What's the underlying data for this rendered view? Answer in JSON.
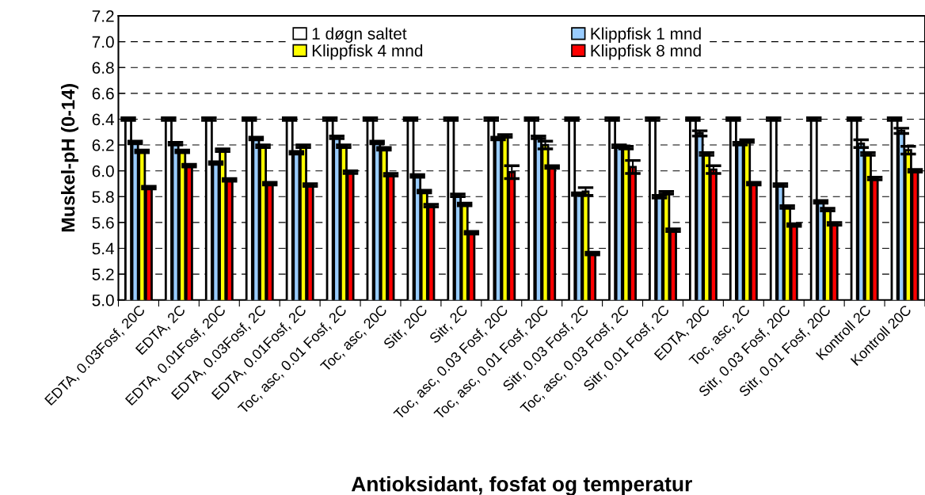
{
  "chart_data": {
    "type": "bar",
    "xlabel": "Antioksidant, fosfat og temperatur",
    "ylabel": "Muskel-pH (0-14)",
    "categories": [
      "EDTA, 0.03Fosf, 20C",
      "EDTA, 2C",
      "EDTA, 0.01Fosf, 20C",
      "EDTA, 0.03Fosf, 2C",
      "EDTA, 0.01Fosf, 2C",
      "Toc, asc, 0.01 Fosf, 2C",
      "Toc, asc, 20C",
      "Sitr, 20C",
      "Sitr, 2C",
      "Toc, asc, 0.03 Fosf, 20C",
      "Toc, asc, 0.01 Fosf, 20C",
      "Sitr, 0.03 Fosf, 2C",
      "Toc, asc, 0.03 Fosf, 2C",
      "Sitr, 0.01 Fosf, 2C",
      "EDTA, 20C",
      "Toc, asc, 2C",
      "Sitr, 0.03 Fosf, 20C",
      "Sitr, 0.01 Fosf, 20C",
      "Kontroll 2C",
      "Kontroll 20C"
    ],
    "series": [
      {
        "name": "1 døgn saltet",
        "color": "#ffffff",
        "values": [
          6.4,
          6.4,
          6.4,
          6.4,
          6.4,
          6.4,
          6.4,
          6.4,
          6.4,
          6.4,
          6.4,
          6.4,
          6.4,
          6.4,
          6.4,
          6.4,
          6.4,
          6.4,
          6.4,
          6.4
        ],
        "errors": [
          0.01,
          0.01,
          0.01,
          0.01,
          0.01,
          0.01,
          0.01,
          0.01,
          0.01,
          0.01,
          0.01,
          0.01,
          0.01,
          0.01,
          0.01,
          0.01,
          0.01,
          0.01,
          0.01,
          0.01
        ]
      },
      {
        "name": "Klippfisk 1 mnd",
        "color": "#99ccff",
        "values": [
          6.22,
          6.21,
          6.06,
          6.25,
          6.14,
          6.26,
          6.22,
          5.96,
          5.81,
          6.25,
          6.26,
          5.82,
          6.19,
          5.8,
          6.29,
          6.21,
          5.89,
          5.76,
          6.21,
          6.31
        ],
        "errors": [
          0.01,
          0.01,
          0.01,
          0.01,
          0.01,
          0.01,
          0.01,
          0.01,
          0.01,
          0.01,
          0.01,
          0.01,
          0.01,
          0.01,
          0.02,
          0.01,
          0.01,
          0.01,
          0.03,
          0.02
        ]
      },
      {
        "name": "Klippfisk 4 mnd",
        "color": "#ffff00",
        "values": [
          6.15,
          6.15,
          6.16,
          6.19,
          6.19,
          6.19,
          6.17,
          5.84,
          5.74,
          6.27,
          6.2,
          5.84,
          6.18,
          5.83,
          6.13,
          6.23,
          5.72,
          5.7,
          6.13,
          6.16
        ],
        "errors": [
          0.01,
          0.01,
          0.01,
          0.01,
          0.01,
          0.01,
          0.01,
          0.01,
          0.01,
          0.01,
          0.03,
          0.03,
          0.01,
          0.01,
          0.01,
          0.01,
          0.01,
          0.01,
          0.01,
          0.03
        ]
      },
      {
        "name": "Klippfisk 8 mnd",
        "color": "#ff0000",
        "values": [
          5.87,
          6.04,
          5.93,
          5.9,
          5.89,
          5.99,
          5.97,
          5.73,
          5.52,
          5.99,
          6.03,
          5.36,
          6.03,
          5.54,
          6.01,
          5.9,
          5.58,
          5.59,
          5.94,
          6.0
        ],
        "errors": [
          0.01,
          0.01,
          0.01,
          0.01,
          0.01,
          0.01,
          0.01,
          0.01,
          0.01,
          0.05,
          0.01,
          0.01,
          0.05,
          0.01,
          0.03,
          0.01,
          0.01,
          0.01,
          0.01,
          0.01
        ]
      }
    ],
    "ylim": [
      5.0,
      7.2
    ],
    "yticks": [
      {
        "value": 5.0,
        "label": "5.0"
      },
      {
        "value": 5.2,
        "label": "5.2"
      },
      {
        "value": 5.4,
        "label": "5.4"
      },
      {
        "value": 5.6,
        "label": "5.6"
      },
      {
        "value": 5.8,
        "label": "5.8"
      },
      {
        "value": 6.0,
        "label": "6.0"
      },
      {
        "value": 6.2,
        "label": "6.2"
      },
      {
        "value": 6.4,
        "label": "6.4"
      },
      {
        "value": 6.6,
        "label": "6.6"
      },
      {
        "value": 6.8,
        "label": "6.8"
      },
      {
        "value": 7.0,
        "label": "7.0"
      },
      {
        "value": 7.2,
        "label": "7.2"
      }
    ],
    "grid": "y",
    "legend": "top"
  }
}
